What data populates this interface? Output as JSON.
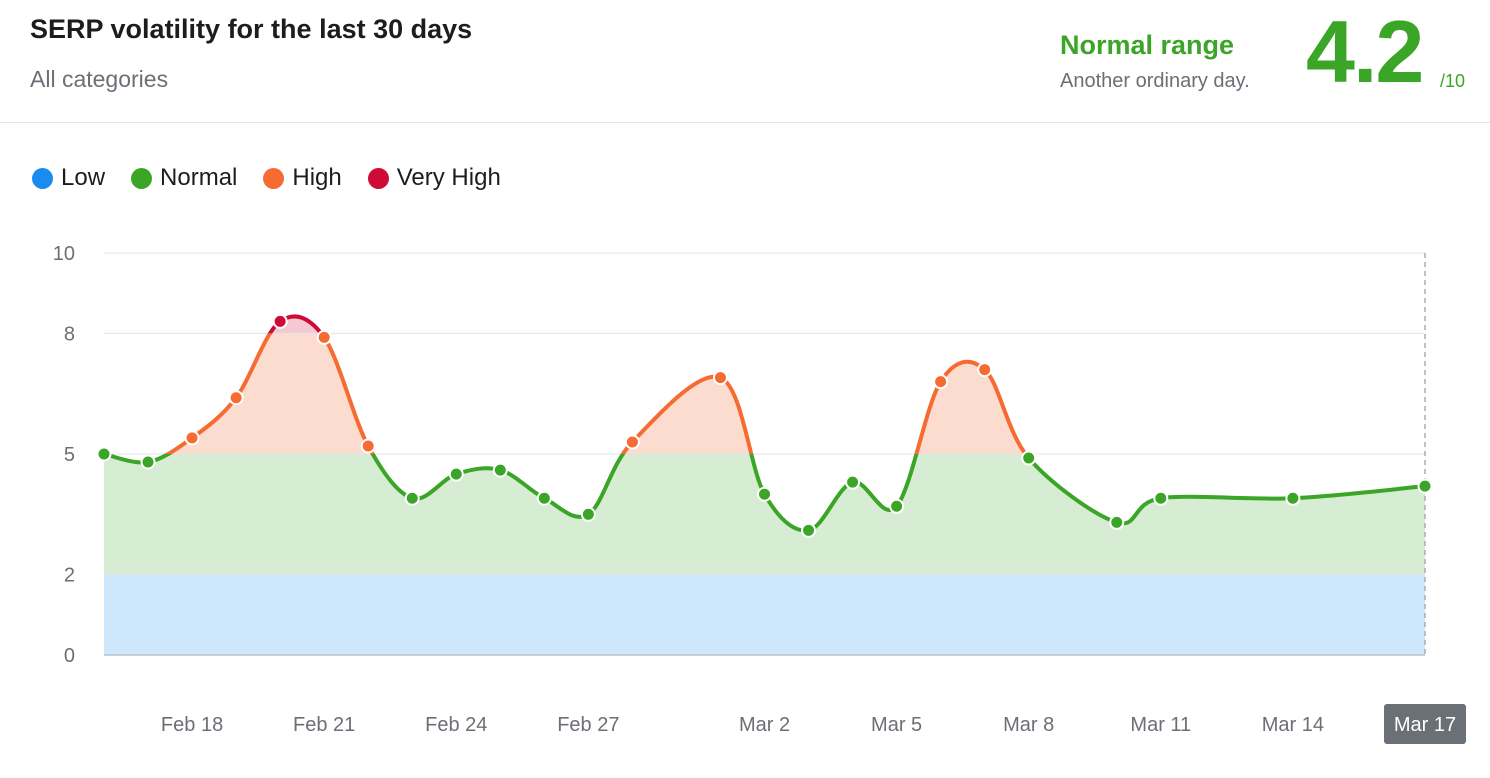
{
  "header": {
    "title": "SERP volatility for the last 30 days",
    "subtitle": "All categories",
    "status_label": "Normal range",
    "status_desc": "Another ordinary day.",
    "score": "4.2",
    "score_max": "/10"
  },
  "legend": [
    {
      "label": "Low",
      "color": "#1a8cf0"
    },
    {
      "label": "Normal",
      "color": "#3aa526"
    },
    {
      "label": "High",
      "color": "#f56b31"
    },
    {
      "label": "Very High",
      "color": "#cf0a36"
    }
  ],
  "colors": {
    "low": "#1a8cf0",
    "low_fill": "#cfe7fb",
    "normal": "#3aa526",
    "normal_fill": "#d7edd3",
    "high": "#f56b31",
    "high_fill": "#fddcd0",
    "very_high": "#cf0a36",
    "very_high_fill": "#f6c9d2",
    "active_tick_bg": "#6b6f76"
  },
  "chart_data": {
    "type": "line",
    "title": "SERP volatility for the last 30 days",
    "x": [
      "Feb 16",
      "Feb 17",
      "Feb 18",
      "Feb 19",
      "Feb 20",
      "Feb 21",
      "Feb 22",
      "Feb 23",
      "Feb 24",
      "Feb 25",
      "Feb 26",
      "Feb 27",
      "Feb 28",
      "Mar 1",
      "Mar 2",
      "Mar 3",
      "Mar 4",
      "Mar 5",
      "Mar 6",
      "Mar 7",
      "Mar 8",
      "Mar 10",
      "Mar 11",
      "Mar 14",
      "Mar 17"
    ],
    "y": [
      5.0,
      4.8,
      5.4,
      6.4,
      8.3,
      7.9,
      5.2,
      3.9,
      4.5,
      4.6,
      3.9,
      3.5,
      5.3,
      6.9,
      4.0,
      3.1,
      4.3,
      3.7,
      6.8,
      7.1,
      4.9,
      3.3,
      3.9,
      3.9,
      4.2
    ],
    "x_ticks": [
      "Feb 18",
      "Feb 21",
      "Feb 24",
      "Feb 27",
      "Mar 2",
      "Mar 5",
      "Mar 8",
      "Mar 11",
      "Mar 14",
      "Mar 17"
    ],
    "active_tick": "Mar 17",
    "y_ticks": [
      0,
      2,
      5,
      8,
      10
    ],
    "ylim": [
      0,
      10
    ],
    "bands": [
      {
        "name": "Low",
        "from": 0,
        "to": 2
      },
      {
        "name": "Normal",
        "from": 2,
        "to": 5
      },
      {
        "name": "High",
        "from": 5,
        "to": 8
      },
      {
        "name": "Very High",
        "from": 8,
        "to": 10
      }
    ],
    "grid": true,
    "legend_position": "top-left"
  }
}
